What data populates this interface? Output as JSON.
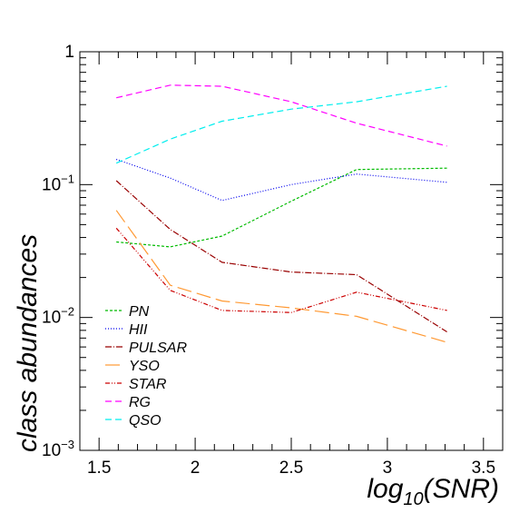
{
  "chart_data": {
    "type": "line",
    "xlabel": "log_{10}(SNR)",
    "ylabel": "class abundances",
    "xlim": [
      1.4,
      3.6
    ],
    "ylim": [
      0.001,
      1
    ],
    "y_scale": "log",
    "grid": false,
    "legend_position": "bottom-left",
    "x_ticks": [
      {
        "value": 1.5,
        "label": "1.5"
      },
      {
        "value": 2.0,
        "label": "2"
      },
      {
        "value": 2.5,
        "label": "2.5"
      },
      {
        "value": 3.0,
        "label": "3"
      },
      {
        "value": 3.5,
        "label": "3.5"
      }
    ],
    "y_ticks": [
      {
        "value": 1,
        "base": "1",
        "exp": ""
      },
      {
        "value": 0.1,
        "base": "10",
        "exp": "−1"
      },
      {
        "value": 0.01,
        "base": "10",
        "exp": "−2"
      },
      {
        "value": 0.001,
        "base": "10",
        "exp": "−3"
      }
    ],
    "x": [
      1.59,
      1.87,
      2.14,
      2.5,
      2.84,
      3.31
    ],
    "series": [
      {
        "name": "PN",
        "color": "#00bb00",
        "dash": "3,2",
        "values": [
          0.037,
          0.034,
          0.041,
          0.075,
          0.13,
          0.133
        ]
      },
      {
        "name": "HII",
        "color": "#0000ee",
        "dash": "1,2",
        "values": [
          0.155,
          0.112,
          0.076,
          0.1,
          0.12,
          0.104
        ]
      },
      {
        "name": "PULSAR",
        "color": "#990000",
        "dash": "7,2,1,2",
        "values": [
          0.107,
          0.046,
          0.026,
          0.022,
          0.021,
          0.0078
        ]
      },
      {
        "name": "YSO",
        "color": "#ff9933",
        "dash": "16,6",
        "values": [
          0.064,
          0.0175,
          0.0133,
          0.0118,
          0.0102,
          0.0065
        ]
      },
      {
        "name": "STAR",
        "color": "#cc0000",
        "dash": "5,2,1,2,1,2",
        "values": [
          0.047,
          0.016,
          0.0113,
          0.0109,
          0.0155,
          0.0113
        ]
      },
      {
        "name": "RG",
        "color": "#ff00ff",
        "dash": "7,4",
        "values": [
          0.45,
          0.56,
          0.55,
          0.42,
          0.29,
          0.195
        ]
      },
      {
        "name": "QSO",
        "color": "#00eeee",
        "dash": "7,4",
        "values": [
          0.145,
          0.22,
          0.3,
          0.37,
          0.42,
          0.55
        ]
      }
    ]
  }
}
